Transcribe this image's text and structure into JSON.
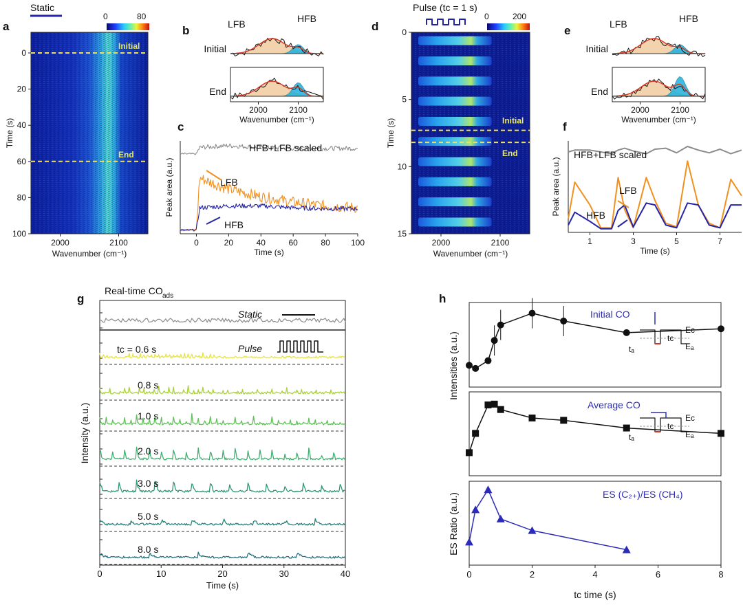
{
  "panels": {
    "a": {
      "letter": "a",
      "mode": "Static",
      "xlabel": "Wavenumber (cm⁻¹)",
      "ylabel": "Time (s)",
      "yticks": [
        "0",
        "20",
        "40",
        "60",
        "80",
        "100"
      ],
      "xticks": [
        "2000",
        "2100"
      ],
      "colorbar": [
        "0",
        "80"
      ],
      "initial_label": "Initial",
      "end_label": "End"
    },
    "b": {
      "letter": "b",
      "initial": "Initial",
      "end": "End",
      "lfb": "LFB",
      "hfb": "HFB",
      "xlabel": "Wavenumber (cm⁻¹)",
      "xticks": [
        "2000",
        "2100"
      ]
    },
    "c": {
      "letter": "c",
      "ylabel": "Peak area (a.u.)",
      "xlabel": "Time (s)",
      "xticks": [
        "0",
        "20",
        "40",
        "60",
        "80",
        "100"
      ],
      "scaled": "HFB+LFB scaled",
      "lfb": "LFB",
      "hfb": "HFB"
    },
    "d": {
      "letter": "d",
      "mode": "Pulse (tᴄ = 1 s)",
      "xlabel": "Wavenumber (cm⁻¹)",
      "ylabel": "Time (s)",
      "yticks": [
        "0",
        "5",
        "10",
        "15"
      ],
      "xticks": [
        "2000",
        "2100"
      ],
      "colorbar": [
        "0",
        "200"
      ],
      "initial_label": "Initial",
      "end_label": "End"
    },
    "e": {
      "letter": "e",
      "initial": "Initial",
      "end": "End",
      "lfb": "LFB",
      "hfb": "HFB",
      "xlabel": "Wavenumber (cm⁻¹)",
      "xticks": [
        "2000",
        "2100"
      ]
    },
    "f": {
      "letter": "f",
      "ylabel": "Peak area (a.u.)",
      "xlabel": "Time (s)",
      "xticks": [
        "1",
        "3",
        "5",
        "7"
      ],
      "scaled": "HFB+LFB scaled",
      "lfb": "LFB",
      "hfb": "HFB"
    },
    "g": {
      "letter": "g",
      "title": "Real-time CO",
      "title_sub": "ads",
      "static": "Static",
      "pulse": "Pulse",
      "ylabel": "Intensity (a.u.)",
      "xlabel": "Time (s)",
      "xticks": [
        "0",
        "10",
        "20",
        "30",
        "40"
      ],
      "trace_labels": [
        "tᴄ = 0.6 s",
        "0.8 s",
        "1.0 s",
        "2.0 s",
        "3.0 s",
        "5.0 s",
        "8.0 s"
      ],
      "trace_colors": [
        "#e6e34a",
        "#a9d13f",
        "#5cc253",
        "#3fae6f",
        "#2d9877",
        "#26847c",
        "#21717d"
      ]
    },
    "h": {
      "letter": "h",
      "ylabel_top": "Intensities (a.u.)",
      "ylabel_bottom": "ES Ratio (a.u.)",
      "xlabel": "tᴄ time (s)",
      "xticks": [
        "0",
        "2",
        "4",
        "6",
        "8"
      ],
      "initial": "Initial CO",
      "average": "Average CO",
      "ratio": "ES (C₂₊)/ES (CH₄)",
      "ec": "Eᴄ",
      "ea": "Eₐ",
      "ta": "tₐ",
      "tc": "tᴄ"
    }
  },
  "colors": {
    "lfb": "#f0901e",
    "hfb": "#2424a8",
    "scaled": "#8c8c8c",
    "ratio": "#2b2bb8",
    "dashed": "#f0e05a"
  },
  "chart_data": [
    {
      "type": "heatmap",
      "panel": "a",
      "xlabel": "Wavenumber (cm-1)",
      "ylabel": "Time (s)",
      "xlim": [
        1950,
        2150
      ],
      "ylim": [
        0,
        100
      ],
      "ticks_x": [
        2000,
        2100
      ],
      "ticks_y": [
        0,
        20,
        40,
        60,
        80,
        100
      ],
      "peak_center": 2080,
      "color_range": [
        0,
        80
      ],
      "markers": [
        {
          "label": "Initial",
          "t": 0
        },
        {
          "label": "End",
          "t": 60
        }
      ]
    },
    {
      "type": "line",
      "panel": "c",
      "xlabel": "Time (s)",
      "ylabel": "Peak area (a.u.)",
      "xlim": [
        -10,
        100
      ],
      "series": [
        {
          "name": "HFB+LFB scaled",
          "x": [
            -10,
            0,
            2,
            20,
            40,
            60,
            80,
            100
          ],
          "values": [
            0.86,
            0.86,
            0.93,
            0.95,
            0.93,
            0.92,
            0.92,
            0.92
          ]
        },
        {
          "name": "LFB",
          "x": [
            -10,
            0,
            2,
            20,
            40,
            60,
            80,
            100
          ],
          "values": [
            0.04,
            0.04,
            0.6,
            0.48,
            0.4,
            0.34,
            0.3,
            0.28
          ]
        },
        {
          "name": "HFB",
          "x": [
            -10,
            0,
            2,
            20,
            40,
            60,
            80,
            100
          ],
          "values": [
            0.04,
            0.04,
            0.28,
            0.3,
            0.3,
            0.28,
            0.27,
            0.27
          ]
        }
      ]
    },
    {
      "type": "heatmap",
      "panel": "d",
      "xlabel": "Wavenumber (cm-1)",
      "ylabel": "Time (s)",
      "xlim": [
        1950,
        2150
      ],
      "ylim": [
        0,
        15
      ],
      "ticks_x": [
        2000,
        2100
      ],
      "ticks_y": [
        0,
        5,
        10,
        15
      ],
      "pulse_period_s": 1.5,
      "color_range": [
        0,
        200
      ],
      "markers": [
        {
          "label": "Initial",
          "t": 7.3
        },
        {
          "label": "End",
          "t": 8.2
        }
      ]
    },
    {
      "type": "line",
      "panel": "f",
      "xlabel": "Time (s)",
      "ylabel": "Peak area (a.u.)",
      "xlim": [
        0,
        8
      ],
      "xticks": [
        1,
        3,
        5,
        7
      ],
      "series": [
        {
          "name": "HFB+LFB scaled",
          "x": [
            0,
            0.3,
            1.0,
            1.5,
            2.0,
            2.3,
            2.6,
            3.0,
            3.6,
            4.0,
            4.5,
            5.0,
            5.5,
            6.0,
            6.5,
            7.0,
            7.5,
            8.0
          ],
          "values": [
            0.88,
            0.9,
            0.9,
            0.88,
            0.86,
            0.9,
            0.92,
            0.89,
            0.86,
            0.91,
            0.92,
            0.87,
            0.94,
            0.9,
            0.87,
            0.91,
            0.86,
            0.9
          ]
        },
        {
          "name": "LFB",
          "x": [
            0,
            0.3,
            1.0,
            1.5,
            2.0,
            2.3,
            2.6,
            3.0,
            3.6,
            4.0,
            4.5,
            5.0,
            5.5,
            6.0,
            6.5,
            7.0,
            7.5,
            8.0
          ],
          "values": [
            0.15,
            0.55,
            0.3,
            0.05,
            0.05,
            0.6,
            0.25,
            0.05,
            0.6,
            0.35,
            0.1,
            0.06,
            0.78,
            0.3,
            0.1,
            0.05,
            0.58,
            0.4
          ]
        },
        {
          "name": "HFB",
          "x": [
            0,
            0.3,
            1.0,
            1.5,
            2.0,
            2.3,
            2.6,
            3.0,
            3.6,
            4.0,
            4.5,
            5.0,
            5.5,
            6.0,
            6.5,
            7.0,
            7.5,
            8.0
          ],
          "values": [
            0.08,
            0.22,
            0.12,
            0.04,
            0.04,
            0.24,
            0.3,
            0.06,
            0.32,
            0.3,
            0.08,
            0.05,
            0.32,
            0.3,
            0.08,
            0.05,
            0.3,
            0.3
          ]
        }
      ]
    },
    {
      "type": "line",
      "panel": "g",
      "xlabel": "Time (s)",
      "ylabel": "Intensity (a.u.)",
      "xlim": [
        0,
        40
      ],
      "series_names": [
        "Static",
        "t_c = 0.6 s",
        "0.8 s",
        "1.0 s",
        "2.0 s",
        "3.0 s",
        "5.0 s",
        "8.0 s"
      ],
      "periods_s": [
        null,
        0.6,
        0.8,
        1.0,
        2.0,
        3.0,
        5.0,
        8.0
      ]
    },
    {
      "type": "line",
      "panel": "h-top",
      "xlabel": "t_c time (s)",
      "ylabel": "Intensities (a.u.)",
      "xlim": [
        0,
        8
      ],
      "series": [
        {
          "name": "Initial CO",
          "x": [
            0,
            0.2,
            0.6,
            0.8,
            1.0,
            2.0,
            3.0,
            5.0,
            8.0
          ],
          "values": [
            0.28,
            0.24,
            0.34,
            0.6,
            0.8,
            0.95,
            0.85,
            0.7,
            0.75
          ]
        }
      ]
    },
    {
      "type": "line",
      "panel": "h-mid",
      "xlabel": "t_c time (s)",
      "ylabel": "Intensities (a.u.)",
      "xlim": [
        0,
        8
      ],
      "series": [
        {
          "name": "Average CO",
          "x": [
            0,
            0.2,
            0.6,
            0.8,
            1.0,
            2.0,
            3.0,
            5.0,
            8.0
          ],
          "values": [
            0.3,
            0.55,
            0.92,
            0.93,
            0.86,
            0.75,
            0.72,
            0.62,
            0.55
          ]
        }
      ]
    },
    {
      "type": "line",
      "panel": "h-bottom",
      "xlabel": "t_c time (s)",
      "ylabel": "ES Ratio (a.u.)",
      "xlim": [
        0,
        8
      ],
      "series": [
        {
          "name": "ES (C2+)/ES (CH4)",
          "x": [
            0,
            0.2,
            0.6,
            1.0,
            2.0,
            5.0
          ],
          "values": [
            0.3,
            0.72,
            0.98,
            0.6,
            0.45,
            0.2
          ]
        }
      ]
    }
  ]
}
